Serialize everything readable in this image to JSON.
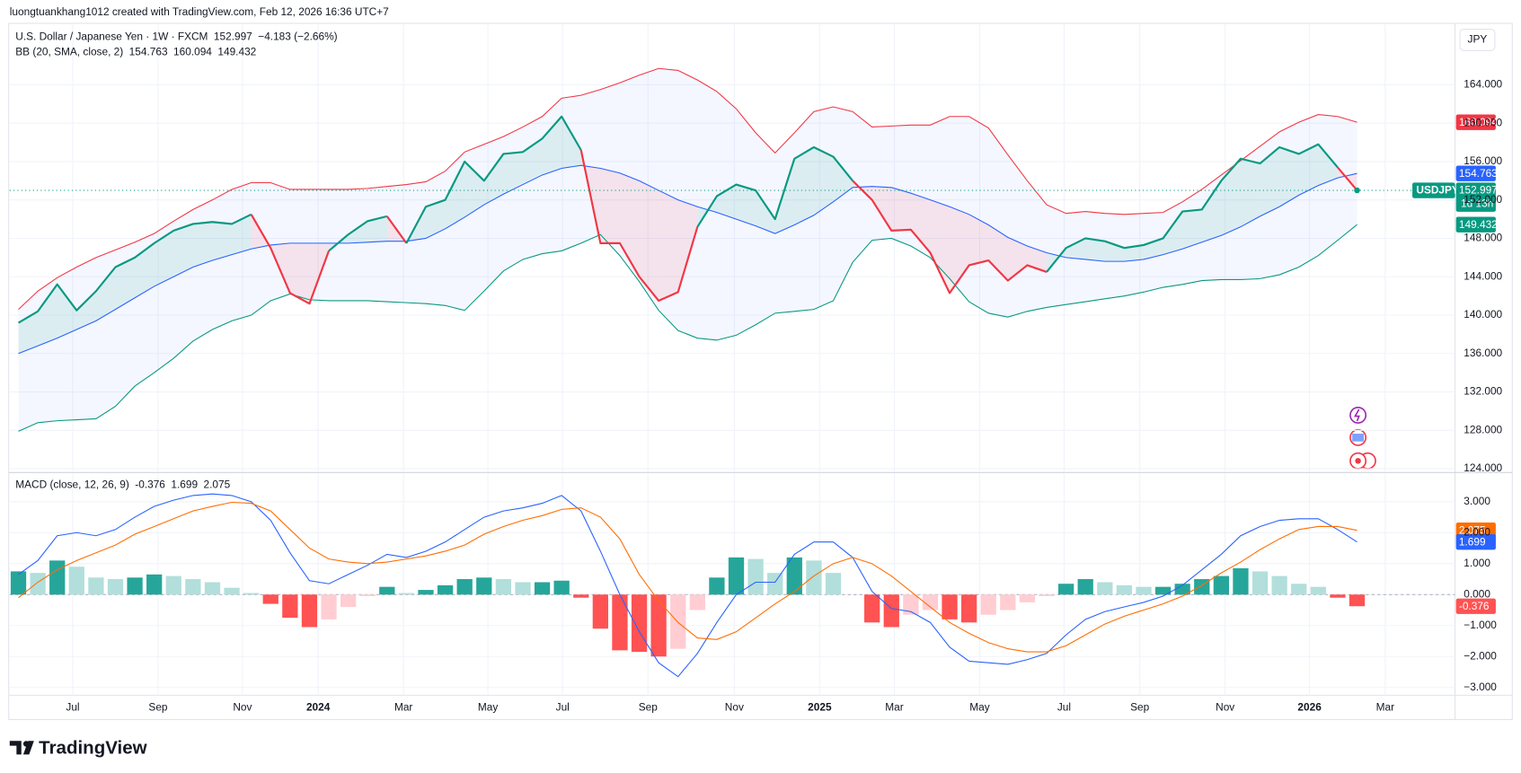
{
  "header": {
    "caption": "luongtuankhang1012 created with TradingView.com, Feb 12, 2026 16:36 UTC+7",
    "currency": "JPY",
    "brand": "TradingView"
  },
  "chart_data": [
    {
      "type": "line",
      "title": "U.S. Dollar / Japanese Yen · 1W · FXCM",
      "change_label": "−4.183 (−2.66%)",
      "symbol": "USDJPY",
      "countdown": "1d 13h",
      "categories": [
        null,
        null,
        null,
        null,
        null,
        null,
        null,
        null,
        null,
        null,
        null,
        null,
        null,
        null,
        null,
        null,
        null,
        null,
        null,
        null,
        null,
        null,
        null,
        null,
        null,
        null,
        null,
        null,
        null,
        null,
        null,
        null,
        null,
        null,
        null,
        null,
        null,
        null,
        null,
        null,
        null,
        null,
        null,
        null,
        null,
        null,
        null,
        null,
        null,
        null,
        null,
        null,
        null,
        null,
        null,
        null,
        null,
        null,
        null,
        null,
        null,
        null,
        null,
        null,
        null,
        null,
        null,
        null,
        null,
        null
      ],
      "xlim": [
        -0.45,
        74.05
      ],
      "ylim": [
        123.7,
        170.3
      ],
      "yticks": [
        {
          "value": 124,
          "label": "124.000"
        },
        {
          "value": 128,
          "label": "128.000"
        },
        {
          "value": 132,
          "label": "132.000"
        },
        {
          "value": 136,
          "label": "136.000"
        },
        {
          "value": 140,
          "label": "140.000"
        },
        {
          "value": 144,
          "label": "144.000"
        },
        {
          "value": 148,
          "label": "148.000"
        },
        {
          "value": 152,
          "label": "152.000"
        },
        {
          "value": 156,
          "label": "156.000"
        },
        {
          "value": 160,
          "label": "160.000"
        },
        {
          "value": 164,
          "label": "164.000"
        }
      ],
      "grid": true,
      "close": {
        "up_color": "#089981",
        "down_color": "#f23645",
        "values": [
          139.2,
          140.4,
          143.2,
          140.5,
          142.5,
          145,
          146,
          147.5,
          148.8,
          149.5,
          149.7,
          149.5,
          150.5,
          147,
          142.3,
          141.2,
          146.7,
          148.4,
          149.8,
          150.3,
          147.5,
          151.3,
          152,
          156,
          154,
          156.8,
          157,
          158.4,
          160.7,
          157.2,
          147.5,
          147.5,
          144,
          141.5,
          142.4,
          149.2,
          152.4,
          153.6,
          153,
          150,
          156.3,
          157.5,
          156.5,
          154,
          152,
          148.8,
          148.9,
          146.5,
          142.3,
          145.2,
          145.7,
          143.6,
          145.2,
          144.5,
          147,
          148,
          147.7,
          147,
          147.3,
          148,
          150.8,
          151,
          154,
          156.3,
          155.8,
          157.5,
          156.8,
          157.8,
          155.4,
          152.997
        ]
      },
      "bb": {
        "label": "BB (20, SMA, close, 2)",
        "fill_color": "#2962ff",
        "basis": {
          "color": "#2962ff",
          "values": [
            136,
            136.8,
            137.6,
            138.5,
            139.4,
            140.6,
            141.8,
            143,
            144,
            145,
            145.7,
            146.3,
            146.9,
            147.3,
            147.5,
            147.5,
            147.5,
            147.5,
            147.6,
            147.7,
            147.7,
            148,
            149,
            150.2,
            151.5,
            152.6,
            153.6,
            154.6,
            155.3,
            155.6,
            155.3,
            154.8,
            154,
            153,
            152,
            151.3,
            150.7,
            150,
            149.3,
            148.5,
            149.4,
            150.4,
            151.8,
            153.3,
            153.4,
            153.3,
            152.7,
            152,
            151.3,
            150.5,
            149.4,
            148.1,
            147.2,
            146.5,
            146,
            145.8,
            145.6,
            145.6,
            145.8,
            146.3,
            146.9,
            147.6,
            148.3,
            149.2,
            150.3,
            151.3,
            152.5,
            153.5,
            154.3,
            154.763
          ]
        },
        "upper": {
          "color": "#f23645",
          "values": [
            140.6,
            142.5,
            143.9,
            145,
            146,
            146.8,
            147.6,
            148.5,
            149.8,
            151,
            152,
            153.1,
            153.8,
            153.8,
            153.1,
            153.1,
            153.1,
            153.1,
            153.2,
            153.4,
            153.6,
            153.9,
            155,
            157,
            157.8,
            158.6,
            159.6,
            160.7,
            162.6,
            162.9,
            163.5,
            164.2,
            165,
            165.7,
            165.5,
            164.5,
            163.3,
            161.5,
            159,
            156.9,
            159,
            161.2,
            161.7,
            161.2,
            159.6,
            159.7,
            159.8,
            159.8,
            160.7,
            160.7,
            159.5,
            156.7,
            154,
            151.5,
            150.6,
            150.8,
            150.6,
            150.5,
            150.6,
            150.7,
            151.8,
            153.1,
            154.6,
            156.1,
            157.6,
            159.1,
            160.1,
            160.9,
            160.7,
            160.094
          ]
        },
        "lower": {
          "color": "#089981",
          "values": [
            127.9,
            128.8,
            129,
            129.1,
            129.2,
            130.5,
            132.6,
            134,
            135.5,
            137.3,
            138.5,
            139.4,
            140,
            141.5,
            142.2,
            141.6,
            141.5,
            141.5,
            141.5,
            141.4,
            141.3,
            141.2,
            141,
            140.5,
            142.5,
            144.6,
            145.8,
            146.4,
            146.7,
            147.5,
            148.4,
            146.2,
            143.5,
            140.5,
            138.4,
            137.6,
            137.4,
            137.9,
            139,
            140.2,
            140.4,
            140.6,
            141.5,
            145.5,
            147.8,
            148,
            147.2,
            146,
            143.8,
            141.4,
            140.2,
            139.8,
            140.4,
            140.8,
            141.1,
            141.4,
            141.7,
            142,
            142.4,
            142.9,
            143.2,
            143.6,
            143.7,
            143.7,
            143.8,
            144.2,
            145,
            146.2,
            147.8,
            149.432
          ]
        }
      }
    },
    {
      "type": "macd",
      "title": "MACD (close, 12, 26, 9)",
      "xlim": [
        -0.45,
        74.05
      ],
      "ylim": [
        -3.25,
        3.91
      ],
      "yticks": [
        {
          "value": -3,
          "label": "−3.000"
        },
        {
          "value": -2,
          "label": "−2.000"
        },
        {
          "value": -1,
          "label": "−1.000"
        },
        {
          "value": 0,
          "label": "0.000"
        },
        {
          "value": 1,
          "label": "1.000"
        },
        {
          "value": 2,
          "label": "2.000"
        },
        {
          "value": 3,
          "label": "3.000"
        }
      ],
      "xticks": [
        {
          "value": 2.8,
          "label": "Jul"
        },
        {
          "value": 7.2,
          "label": "Sep"
        },
        {
          "value": 11.55,
          "label": "Nov"
        },
        {
          "value": 15.45,
          "label": "2024"
        },
        {
          "value": 19.85,
          "label": "Mar"
        },
        {
          "value": 24.2,
          "label": "May"
        },
        {
          "value": 28.05,
          "label": "Jul"
        },
        {
          "value": 32.45,
          "label": "Sep"
        },
        {
          "value": 36.9,
          "label": "Nov"
        },
        {
          "value": 41.3,
          "label": "2025"
        },
        {
          "value": 45.15,
          "label": "Mar"
        },
        {
          "value": 49.55,
          "label": "May"
        },
        {
          "value": 53.9,
          "label": "Jul"
        },
        {
          "value": 57.8,
          "label": "Sep"
        },
        {
          "value": 62.2,
          "label": "Nov"
        },
        {
          "value": 66.55,
          "label": "2026"
        },
        {
          "value": 70.45,
          "label": "Mar"
        }
      ],
      "grid": true,
      "histogram": {
        "colors": {
          "up_grow": "#26a69a",
          "up_fall": "#b2dfdb",
          "down_grow": "#ff5252",
          "down_fall": "#ffcdd2"
        },
        "values": [
          0.75,
          0.7,
          1.1,
          0.9,
          0.55,
          0.5,
          0.55,
          0.65,
          0.6,
          0.5,
          0.4,
          0.22,
          0.05,
          -0.3,
          -0.75,
          -1.05,
          -0.8,
          -0.4,
          -0.05,
          0.25,
          0.05,
          0.15,
          0.3,
          0.5,
          0.55,
          0.5,
          0.4,
          0.4,
          0.45,
          -0.1,
          -1.1,
          -1.8,
          -1.85,
          -2,
          -1.75,
          -0.5,
          0.55,
          1.2,
          1.15,
          0.7,
          1.2,
          1.1,
          0.7,
          0,
          -0.9,
          -1.05,
          -0.65,
          -0.5,
          -0.8,
          -0.9,
          -0.65,
          -0.5,
          -0.25,
          -0.05,
          0.35,
          0.5,
          0.4,
          0.3,
          0.25,
          0.25,
          0.35,
          0.5,
          0.6,
          0.85,
          0.75,
          0.6,
          0.35,
          0.25,
          -0.1,
          -0.376
        ]
      },
      "macd": {
        "color": "#2962ff",
        "values": [
          0.65,
          1.1,
          1.9,
          2,
          1.9,
          2.1,
          2.5,
          2.85,
          3.05,
          3.2,
          3.25,
          3.2,
          3,
          2.4,
          1.35,
          0.45,
          0.35,
          0.65,
          0.95,
          1.3,
          1.2,
          1.4,
          1.7,
          2.1,
          2.5,
          2.7,
          2.8,
          2.95,
          3.2,
          2.7,
          1.4,
          0,
          -1.2,
          -2.2,
          -2.65,
          -1.9,
          -0.9,
          0,
          0.4,
          0.4,
          1.3,
          1.7,
          1.7,
          1.2,
          0.1,
          -0.45,
          -0.55,
          -0.9,
          -1.7,
          -2.15,
          -2.2,
          -2.25,
          -2.1,
          -1.9,
          -1.3,
          -0.8,
          -0.55,
          -0.4,
          -0.25,
          -0.05,
          0.3,
          0.8,
          1.3,
          1.9,
          2.2,
          2.4,
          2.45,
          2.45,
          2.1,
          1.699
        ]
      },
      "signal": {
        "color": "#ff6d00",
        "values": [
          -0.1,
          0.4,
          0.8,
          1.1,
          1.35,
          1.6,
          1.95,
          2.2,
          2.45,
          2.7,
          2.85,
          2.98,
          2.95,
          2.7,
          2.1,
          1.5,
          1.15,
          1.05,
          1,
          1.05,
          1.15,
          1.25,
          1.4,
          1.6,
          1.95,
          2.2,
          2.4,
          2.55,
          2.75,
          2.8,
          2.5,
          1.8,
          0.65,
          -0.2,
          -0.9,
          -1.4,
          -1.45,
          -1.2,
          -0.75,
          -0.3,
          0.1,
          0.6,
          1,
          1.2,
          1,
          0.6,
          0.1,
          -0.4,
          -0.9,
          -1.25,
          -1.55,
          -1.75,
          -1.85,
          -1.85,
          -1.65,
          -1.3,
          -0.95,
          -0.7,
          -0.5,
          -0.3,
          -0.05,
          0.3,
          0.7,
          1.05,
          1.45,
          1.8,
          2.1,
          2.2,
          2.2,
          2.075
        ]
      }
    }
  ]
}
